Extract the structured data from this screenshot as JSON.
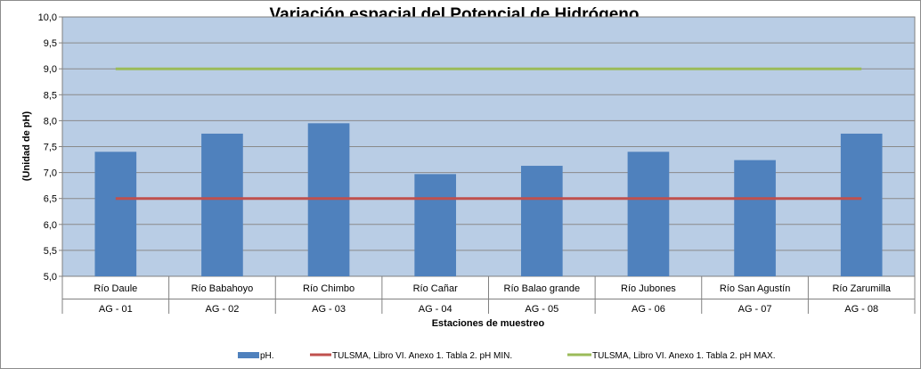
{
  "chart_data": {
    "type": "bar",
    "title": "Variación espacial del Potencial de Hidrógeno",
    "xlabel": "Estaciones de muestreo",
    "ylabel": "(Unidad de pH)",
    "ylim": [
      5.0,
      10.0
    ],
    "y_ticks": [
      "5,0",
      "5,5",
      "6,0",
      "6,5",
      "7,0",
      "7,5",
      "8,0",
      "8,5",
      "9,0",
      "9,5",
      "10,0"
    ],
    "categories": [
      {
        "name": "Río Daule",
        "code": "AG - 01"
      },
      {
        "name": "Río Babahoyo",
        "code": "AG - 02"
      },
      {
        "name": "Río Chimbo",
        "code": "AG - 03"
      },
      {
        "name": "Río Cañar",
        "code": "AG - 04"
      },
      {
        "name": "Río Balao grande",
        "code": "AG - 05"
      },
      {
        "name": "Río Jubones",
        "code": "AG - 06"
      },
      {
        "name": "Río San Agustín",
        "code": "AG - 07"
      },
      {
        "name": "Río Zarumilla",
        "code": "AG - 08"
      }
    ],
    "series": [
      {
        "name": "pH.",
        "kind": "bar",
        "color": "#4F81BD",
        "values": [
          7.4,
          7.75,
          7.95,
          6.97,
          7.13,
          7.4,
          7.24,
          7.75
        ]
      },
      {
        "name": "TULSMA, Libro VI. Anexo 1. Tabla 2.  pH MIN.",
        "kind": "line",
        "color": "#C0504D",
        "values": [
          6.5,
          6.5,
          6.5,
          6.5,
          6.5,
          6.5,
          6.5,
          6.5
        ]
      },
      {
        "name": "TULSMA, Libro VI. Anexo 1. Tabla 2.  pH MAX.",
        "kind": "line",
        "color": "#9BBB59",
        "values": [
          9.0,
          9.0,
          9.0,
          9.0,
          9.0,
          9.0,
          9.0,
          9.0
        ]
      }
    ],
    "grid": true,
    "plot_background": "#B9CDE5",
    "legend_position": "bottom"
  }
}
